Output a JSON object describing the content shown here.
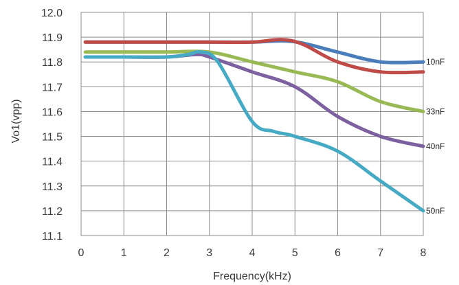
{
  "chart_data": {
    "type": "line",
    "xlabel": "Frequency(kHz)",
    "ylabel": "Vo1(vpp)",
    "xlim": [
      0,
      8
    ],
    "ylim": [
      11.1,
      12.0
    ],
    "x_ticks": [
      "0",
      "1",
      "2",
      "3",
      "4",
      "5",
      "6",
      "7",
      "8"
    ],
    "y_ticks": [
      "12.0",
      "11.9",
      "11.8",
      "11.7",
      "11.6",
      "11.5",
      "11.4",
      "11.3",
      "11.2",
      "11.1"
    ],
    "grid": true,
    "series": [
      {
        "name": "10nF",
        "color": "#4a7ebb",
        "points": [
          [
            0.1,
            11.88
          ],
          [
            1,
            11.88
          ],
          [
            2,
            11.88
          ],
          [
            3,
            11.88
          ],
          [
            4,
            11.88
          ],
          [
            4.7,
            11.885
          ],
          [
            5.2,
            11.875
          ],
          [
            6,
            11.84
          ],
          [
            7,
            11.8
          ],
          [
            8,
            11.8
          ]
        ]
      },
      {
        "name": "",
        "color": "#be4b48",
        "points": [
          [
            0.1,
            11.88
          ],
          [
            1,
            11.88
          ],
          [
            2,
            11.88
          ],
          [
            3,
            11.88
          ],
          [
            4,
            11.88
          ],
          [
            4.7,
            11.89
          ],
          [
            5.2,
            11.87
          ],
          [
            6,
            11.8
          ],
          [
            7,
            11.76
          ],
          [
            8,
            11.76
          ]
        ]
      },
      {
        "name": "33nF",
        "color": "#98b954",
        "points": [
          [
            0.1,
            11.84
          ],
          [
            1,
            11.84
          ],
          [
            2,
            11.84
          ],
          [
            3,
            11.84
          ],
          [
            4,
            11.8
          ],
          [
            5,
            11.76
          ],
          [
            6,
            11.72
          ],
          [
            7,
            11.64
          ],
          [
            8,
            11.6
          ]
        ]
      },
      {
        "name": "40nF",
        "color": "#7d60a0",
        "points": [
          [
            0.1,
            11.82
          ],
          [
            1,
            11.82
          ],
          [
            2,
            11.82
          ],
          [
            2.7,
            11.83
          ],
          [
            3,
            11.82
          ],
          [
            4,
            11.76
          ],
          [
            5,
            11.7
          ],
          [
            6,
            11.58
          ],
          [
            7,
            11.5
          ],
          [
            8,
            11.46
          ]
        ]
      },
      {
        "name": "50nF",
        "color": "#46aac5",
        "points": [
          [
            0.1,
            11.82
          ],
          [
            1,
            11.82
          ],
          [
            2,
            11.82
          ],
          [
            2.5,
            11.83
          ],
          [
            2.8,
            11.84
          ],
          [
            3.2,
            11.8
          ],
          [
            4,
            11.56
          ],
          [
            4.5,
            11.52
          ],
          [
            5,
            11.5
          ],
          [
            6,
            11.44
          ],
          [
            7,
            11.32
          ],
          [
            8,
            11.2
          ]
        ]
      }
    ]
  }
}
